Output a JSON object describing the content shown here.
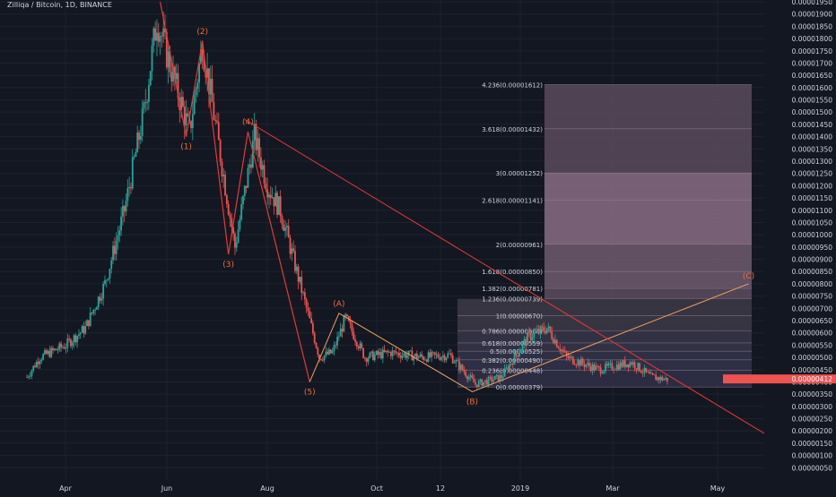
{
  "header": {
    "symbol_label": "Zilliqa / Bitcoin, 1D, BINANCE"
  },
  "colors": {
    "background": "#131722",
    "grid": "#1e222d",
    "up_candle": "#26a69a",
    "down_candle": "#ef5350",
    "wave_line": "#e53935",
    "wave_label": "#ef6c3a",
    "corrective_line": "#f0a060",
    "axis_text": "#d1d4dc",
    "fib_box": "#8a6d80",
    "last_price_bg": "#ef5350"
  },
  "chart_data": {
    "type": "candlestick",
    "title": "Zilliqa / Bitcoin, 1D, BINANCE",
    "y_scale": "linear",
    "ylim": [
      0.0,
      1.95e-05
    ],
    "y_ticks": [
      "0.00001950",
      "0.00001900",
      "0.00001850",
      "0.00001800",
      "0.00001750",
      "0.00001700",
      "0.00001650",
      "0.00001600",
      "0.00001550",
      "0.00001500",
      "0.00001450",
      "0.00001400",
      "0.00001350",
      "0.00001300",
      "0.00001250",
      "0.00001200",
      "0.00001150",
      "0.00001100",
      "0.00001050",
      "0.00001000",
      "0.00000950",
      "0.00000900",
      "0.00000850",
      "0.00000800",
      "0.00000750",
      "0.00000700",
      "0.00000650",
      "0.00000600",
      "0.00000550",
      "0.00000500",
      "0.00000450",
      "0.00000400",
      "0.00000350",
      "0.00000300",
      "0.00000250",
      "0.00000200",
      "0.00000150",
      "0.00000100",
      "0.00000050"
    ],
    "x_ticks": [
      "Apr",
      "Jun",
      "Aug",
      "Oct",
      "12",
      "2019",
      "Mar",
      "May"
    ],
    "last_price_label": "0.00000412",
    "price_path": [
      {
        "t": 0,
        "p": 4.2e-06
      },
      {
        "t": 4,
        "p": 5e-06
      },
      {
        "t": 12,
        "p": 5.5e-06
      },
      {
        "t": 18,
        "p": 6.2e-06
      },
      {
        "t": 24,
        "p": 8e-06
      },
      {
        "t": 30,
        "p": 1.1e-05
      },
      {
        "t": 36,
        "p": 1.5e-05
      },
      {
        "t": 40,
        "p": 1.88e-05
      },
      {
        "t": 46,
        "p": 1.6e-05
      },
      {
        "t": 50,
        "p": 1.42e-05
      },
      {
        "t": 54,
        "p": 1.78e-05
      },
      {
        "t": 58,
        "p": 1.45e-05
      },
      {
        "t": 64,
        "p": 9.5e-06
      },
      {
        "t": 70,
        "p": 1.4e-05
      },
      {
        "t": 74,
        "p": 1.2e-05
      },
      {
        "t": 78,
        "p": 1.1e-05
      },
      {
        "t": 84,
        "p": 8e-06
      },
      {
        "t": 90,
        "p": 5e-06
      },
      {
        "t": 94,
        "p": 5.2e-06
      },
      {
        "t": 98,
        "p": 6.6e-06
      },
      {
        "t": 104,
        "p": 5e-06
      },
      {
        "t": 112,
        "p": 5.2e-06
      },
      {
        "t": 122,
        "p": 5e-06
      },
      {
        "t": 130,
        "p": 5.1e-06
      },
      {
        "t": 138,
        "p": 3.9e-06
      },
      {
        "t": 146,
        "p": 4.2e-06
      },
      {
        "t": 154,
        "p": 5.8e-06
      },
      {
        "t": 160,
        "p": 6.2e-06
      },
      {
        "t": 166,
        "p": 5e-06
      },
      {
        "t": 176,
        "p": 4.5e-06
      },
      {
        "t": 186,
        "p": 4.8e-06
      },
      {
        "t": 192,
        "p": 4.2e-06
      },
      {
        "t": 197,
        "p": 4.1e-06
      }
    ],
    "wave_points": [
      {
        "label": "(1)",
        "t": 49,
        "p": 1.4e-05
      },
      {
        "label": "(2)",
        "t": 54,
        "p": 1.79e-05
      },
      {
        "label": "(3)",
        "t": 62,
        "p": 9.2e-06
      },
      {
        "label": "(4)",
        "t": 68,
        "p": 1.42e-05
      },
      {
        "label": "(5)",
        "t": 87,
        "p": 4e-06
      },
      {
        "label": "(A)",
        "t": 96,
        "p": 6.8e-06
      },
      {
        "label": "(B)",
        "t": 137,
        "p": 3.6e-06
      },
      {
        "label": "(C)",
        "t": 222,
        "p": 8e-06
      }
    ],
    "fib_levels": [
      {
        "ratio": "4.236",
        "label": "4.236(0.00001612)",
        "value": 1.612e-05
      },
      {
        "ratio": "3.618",
        "label": "3.618(0.00001432)",
        "value": 1.432e-05
      },
      {
        "ratio": "3",
        "label": "3(0.00001252)",
        "value": 1.252e-05
      },
      {
        "ratio": "2.618",
        "label": "2.618(0.00001141)",
        "value": 1.141e-05
      },
      {
        "ratio": "2",
        "label": "2(0.00000961)",
        "value": 9.61e-06
      },
      {
        "ratio": "1.618",
        "label": "1.618(0.00000850)",
        "value": 8.5e-06
      },
      {
        "ratio": "1.382",
        "label": "1.382(0.00000781)",
        "value": 7.81e-06
      },
      {
        "ratio": "1.236",
        "label": "1.236(0.00000739)",
        "value": 7.39e-06
      },
      {
        "ratio": "1",
        "label": "1(0.00000670)",
        "value": 6.7e-06
      },
      {
        "ratio": "0.786",
        "label": "0.786(0.00000608)",
        "value": 6.08e-06
      },
      {
        "ratio": "0.618",
        "label": "0.618(0.00000559)",
        "value": 5.59e-06
      },
      {
        "ratio": "0.5",
        "label": "0.5(0.00000525)",
        "value": 5.25e-06
      },
      {
        "ratio": "0.382",
        "label": "0.382(0.00000490)",
        "value": 4.9e-06
      },
      {
        "ratio": "0.236",
        "label": "0.236(0.00000448)",
        "value": 4.48e-06
      },
      {
        "ratio": "0",
        "label": "0(0.00000379)",
        "value": 3.79e-06
      }
    ]
  }
}
